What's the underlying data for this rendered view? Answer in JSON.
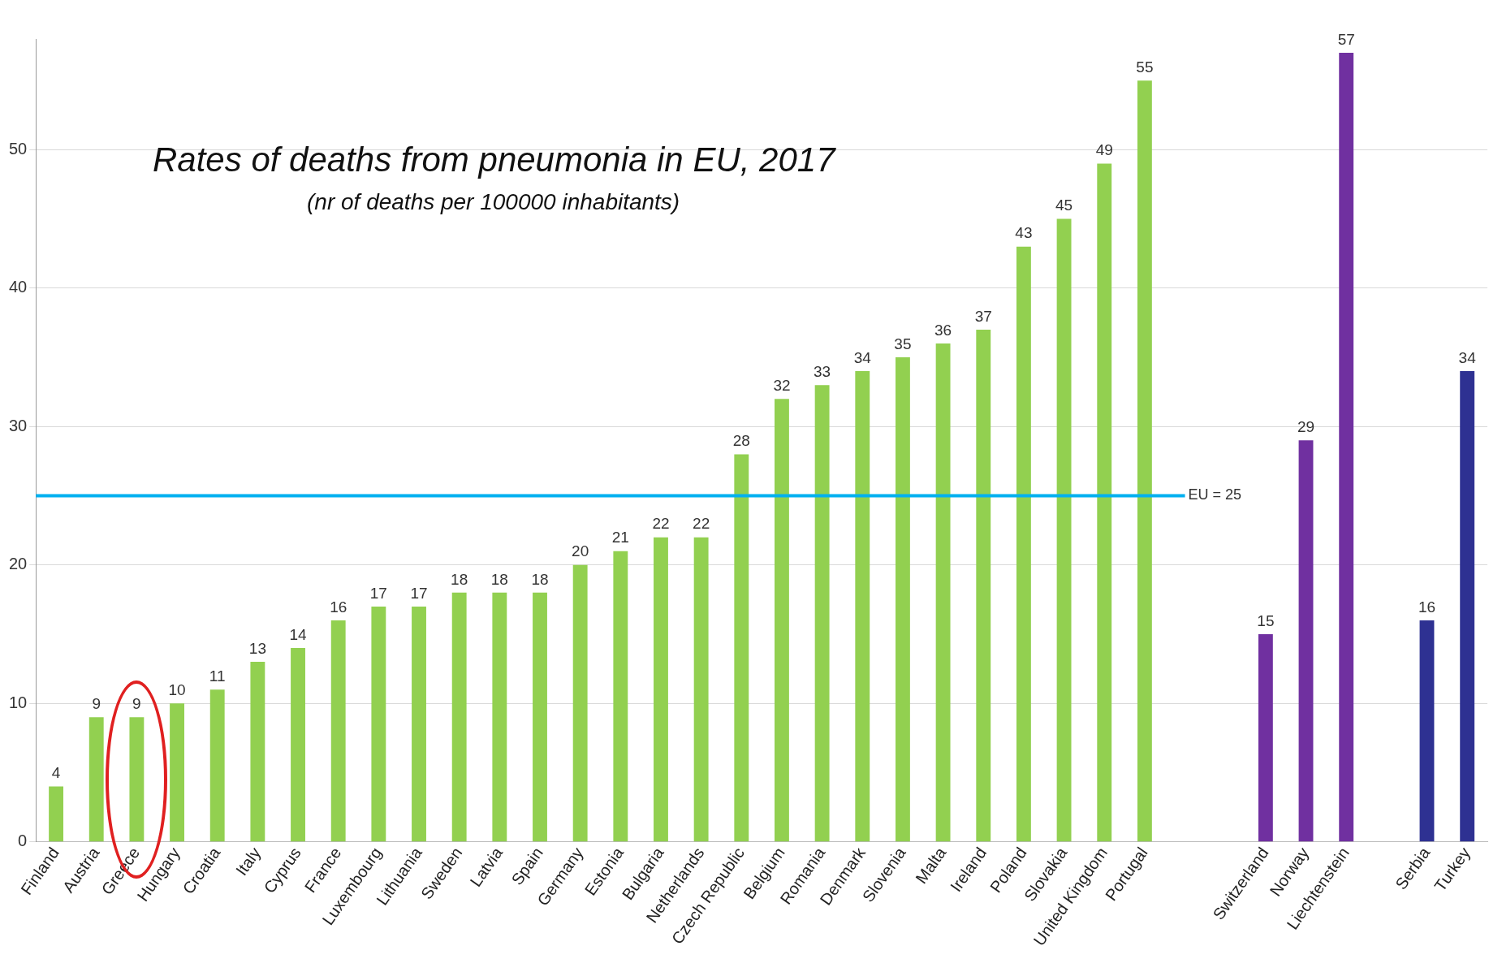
{
  "chart_data": {
    "type": "bar",
    "title": "Rates of deaths from pneumonia in EU, 2017",
    "subtitle": "(nr of deaths per 100000 inhabitants)",
    "categories": [
      "Finland",
      "Austria",
      "Greece",
      "Hungary",
      "Croatia",
      "Italy",
      "Cyprus",
      "France",
      "Luxembourg",
      "Lithuania",
      "Sweden",
      "Latvia",
      "Spain",
      "Germany",
      "Estonia",
      "Bulgaria",
      "Netherlands",
      "Czech Republic",
      "Belgium",
      "Romania",
      "Denmark",
      "Slovenia",
      "Malta",
      "Ireland",
      "Poland",
      "Slovakia",
      "United Kingdom",
      "Portugal",
      null,
      null,
      "Switzerland",
      "Norway",
      "Liechtenstein",
      null,
      "Serbia",
      "Turkey"
    ],
    "values": [
      4,
      9,
      9,
      10,
      11,
      13,
      14,
      16,
      17,
      17,
      18,
      18,
      18,
      20,
      21,
      22,
      22,
      28,
      32,
      33,
      34,
      35,
      36,
      37,
      43,
      45,
      49,
      55,
      null,
      null,
      15,
      29,
      57,
      null,
      16,
      34
    ],
    "colors": [
      "#92d050",
      "#92d050",
      "#92d050",
      "#92d050",
      "#92d050",
      "#92d050",
      "#92d050",
      "#92d050",
      "#92d050",
      "#92d050",
      "#92d050",
      "#92d050",
      "#92d050",
      "#92d050",
      "#92d050",
      "#92d050",
      "#92d050",
      "#92d050",
      "#92d050",
      "#92d050",
      "#92d050",
      "#92d050",
      "#92d050",
      "#92d050",
      "#92d050",
      "#92d050",
      "#92d050",
      "#92d050",
      null,
      null,
      "#7030a0",
      "#7030a0",
      "#7030a0",
      null,
      "#2e3192",
      "#2e3192"
    ],
    "ylim": [
      0,
      58
    ],
    "yticks": [
      0,
      10,
      20,
      30,
      40,
      50
    ],
    "grid": "y",
    "legend": false,
    "data_labels": true,
    "ref_lines": [
      {
        "axis": "y",
        "value": 25,
        "label": "EU = 25",
        "color": "#00b0f0"
      }
    ]
  }
}
